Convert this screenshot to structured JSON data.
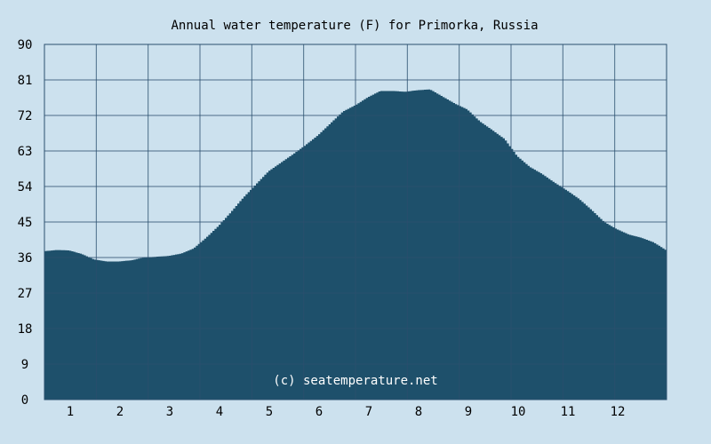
{
  "chart_data": {
    "type": "area",
    "title": "Annual water temperature (F) for Primorka, Russia",
    "credit": "(c) seatemperature.net",
    "xlabel": "",
    "ylabel": "",
    "ylim": [
      0,
      90
    ],
    "yticks": [
      "0",
      "9",
      "18",
      "27",
      "36",
      "45",
      "54",
      "63",
      "72",
      "81",
      "90"
    ],
    "xticks": [
      "1",
      "2",
      "3",
      "4",
      "5",
      "6",
      "7",
      "8",
      "9",
      "10",
      "11",
      "12"
    ],
    "grid": true,
    "colors": {
      "background": "#cce1ee",
      "plot_background": "#cce1ee",
      "fill": "#1e506b",
      "grid": "#2a4f6e"
    },
    "series": [
      {
        "x": [
          0,
          0.25,
          0.5,
          0.75,
          1.0,
          1.25,
          1.5,
          1.75,
          2.0,
          2.25,
          2.5,
          2.75,
          3.0,
          3.25,
          3.5,
          3.75,
          4.0,
          4.25,
          4.5,
          4.75,
          5.0,
          5.25,
          5.5,
          5.75,
          6.0,
          6.25,
          6.5,
          6.75,
          7.0,
          7.25,
          7.5,
          7.75,
          8.0,
          8.25,
          8.5,
          8.75,
          9.0,
          9.25,
          9.5,
          9.75,
          10.0,
          10.25,
          10.5,
          10.75,
          11.0,
          11.25,
          11.5,
          11.75,
          12.0
        ],
        "values": [
          37.6,
          37.9,
          37.8,
          36.9,
          35.5,
          35.0,
          35.0,
          35.3,
          36.0,
          36.2,
          36.4,
          37.0,
          38.3,
          41.0,
          44.0,
          47.5,
          51.2,
          54.5,
          57.8,
          60.0,
          62.2,
          64.5,
          67.0,
          70.0,
          73.0,
          74.6,
          76.6,
          78.2,
          78.2,
          78.0,
          78.4,
          78.6,
          76.8,
          75.0,
          73.5,
          70.5,
          68.3,
          66.0,
          61.7,
          59.0,
          57.2,
          55.0,
          53.0,
          50.8,
          48.0,
          45.0,
          43.2,
          41.8,
          41.0
        ]
      },
      {
        "x": [
          12.0,
          12.25,
          12.5
        ],
        "values": [
          41.0,
          39.8,
          37.8
        ]
      }
    ]
  }
}
